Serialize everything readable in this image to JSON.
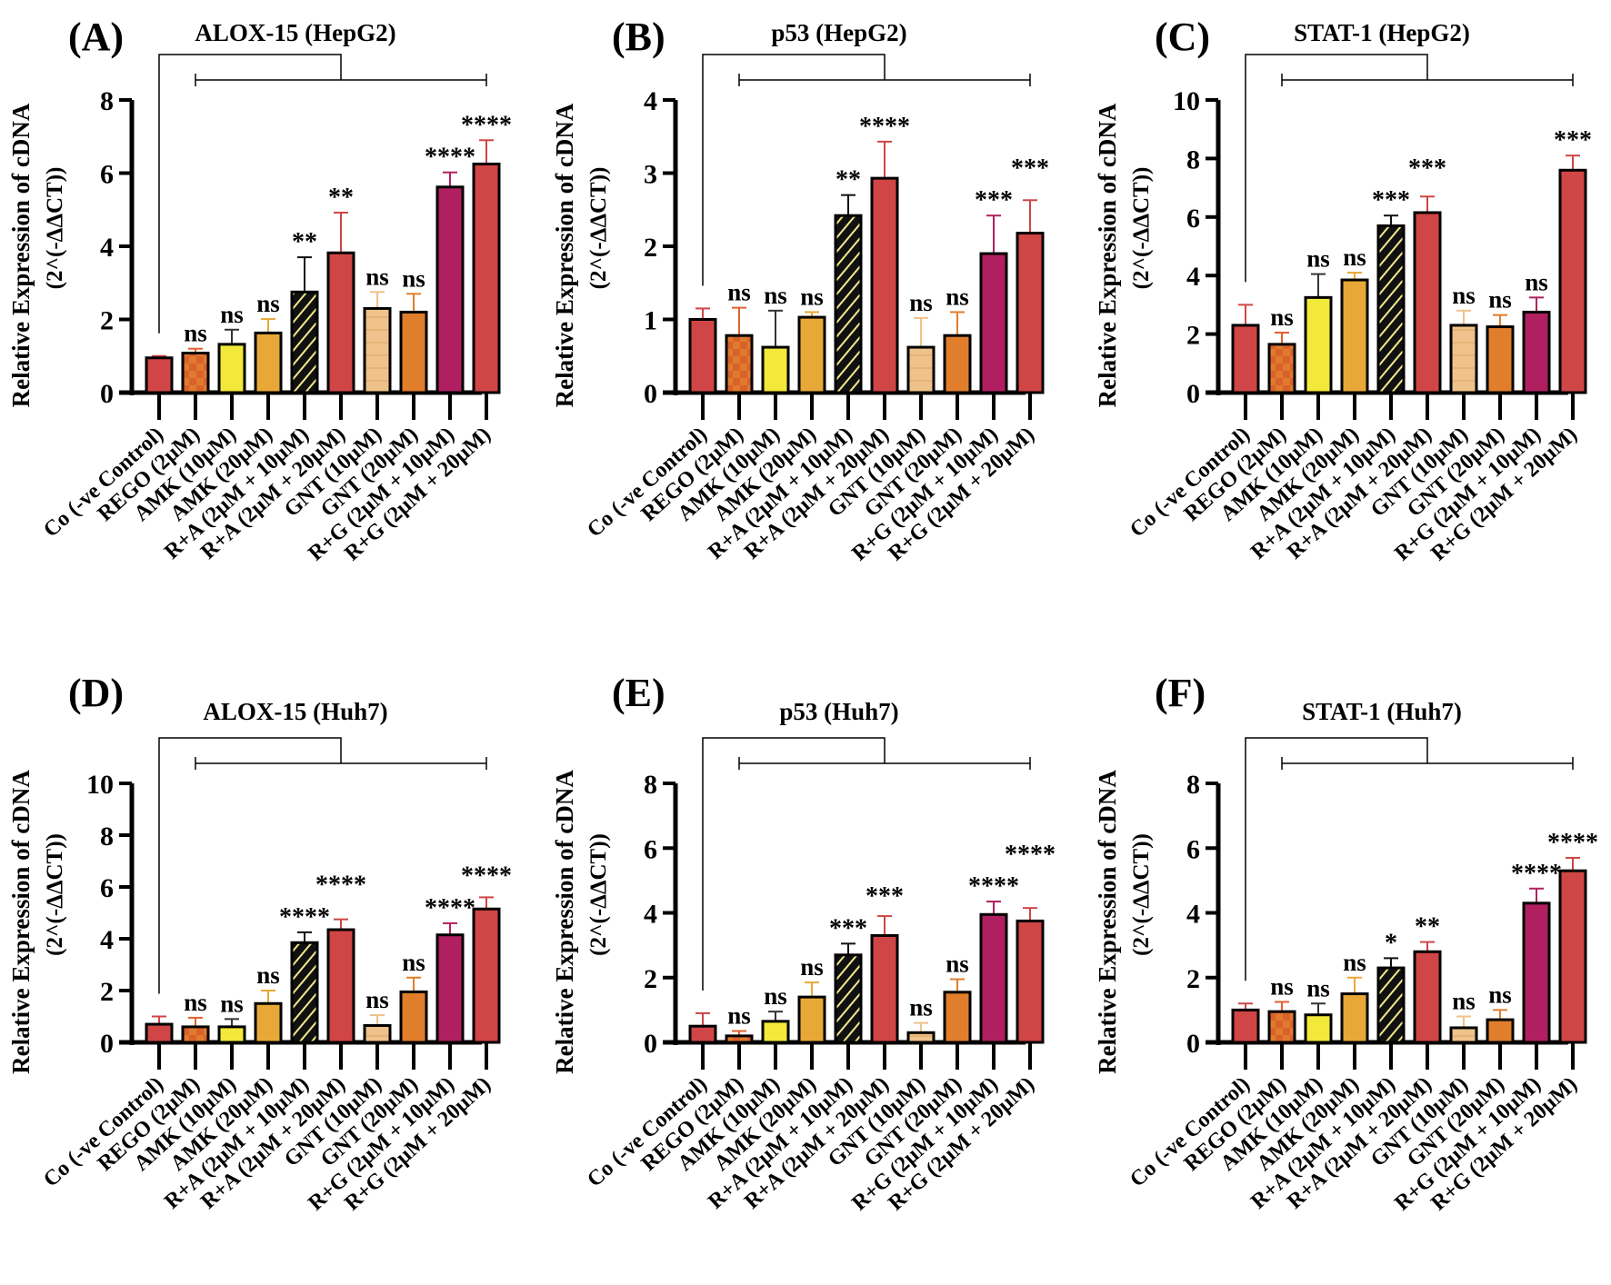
{
  "chart_data": [
    {
      "type": "bar",
      "panel_label": "(A)",
      "title": "ALOX-15 (HepG2)",
      "ylabel": "Relative Expression of cDNA",
      "ylabel2": "(2^(-ΔΔCT))",
      "ylim": [
        0,
        8
      ],
      "yticks": [
        0,
        2,
        4,
        6,
        8
      ],
      "categories": [
        "Co (-ve Control)",
        "REGO (2µM)",
        "AMK (10µM)",
        "AMK (20µM)",
        "R+A (2µM + 10µM)",
        "R+A (2µM + 20µM)",
        "GNT (10µM)",
        "GNT (20µM)",
        "R+G (2µM + 10µM)",
        "R+G (2µM + 20µM)"
      ],
      "values": [
        0.95,
        1.08,
        1.32,
        1.63,
        2.75,
        3.82,
        2.3,
        2.2,
        5.62,
        6.25
      ],
      "errors": [
        0.05,
        0.12,
        0.4,
        0.38,
        0.95,
        1.1,
        0.45,
        0.5,
        0.4,
        0.65
      ],
      "significance": [
        "",
        "ns",
        "ns",
        "ns",
        "**",
        "**",
        "ns",
        "ns",
        "****",
        "****"
      ]
    },
    {
      "type": "bar",
      "panel_label": "(B)",
      "title": "p53 (HepG2)",
      "ylabel": "Relative Expression of cDNA",
      "ylabel2": "(2^(-ΔΔCT))",
      "ylim": [
        0,
        4
      ],
      "yticks": [
        0,
        1,
        2,
        3,
        4
      ],
      "categories": [
        "Co (-ve Control)",
        "REGO (2µM)",
        "AMK (10µM)",
        "AMK (20µM)",
        "R+A (2µM + 10µM)",
        "R+A (2µM + 20µM)",
        "GNT (10µM)",
        "GNT (20µM)",
        "R+G (2µM + 10µM)",
        "R+G (2µM + 20µM)"
      ],
      "values": [
        1.0,
        0.78,
        0.62,
        1.03,
        2.42,
        2.93,
        0.62,
        0.78,
        1.9,
        2.18
      ],
      "errors": [
        0.15,
        0.38,
        0.5,
        0.07,
        0.28,
        0.5,
        0.4,
        0.32,
        0.52,
        0.45
      ],
      "significance": [
        "",
        "ns",
        "ns",
        "ns",
        "**",
        "****",
        "ns",
        "ns",
        "***",
        "***"
      ]
    },
    {
      "type": "bar",
      "panel_label": "(C)",
      "title": "STAT-1 (HepG2)",
      "ylabel": "Relative Expression of cDNA",
      "ylabel2": "(2^(-ΔΔCT))",
      "ylim": [
        0,
        10
      ],
      "yticks": [
        0,
        2,
        4,
        6,
        8,
        10
      ],
      "categories": [
        "Co (-ve Control)",
        "REGO (2µM)",
        "AMK (10µM)",
        "AMK (20µM)",
        "R+A (2µM + 10µM)",
        "R+A (2µM + 20µM)",
        "GNT (10µM)",
        "GNT (20µM)",
        "R+G (2µM + 10µM)",
        "R+G (2µM + 20µM)"
      ],
      "values": [
        2.3,
        1.65,
        3.25,
        3.85,
        5.7,
        6.15,
        2.3,
        2.25,
        2.75,
        7.6
      ],
      "errors": [
        0.7,
        0.4,
        0.8,
        0.25,
        0.35,
        0.55,
        0.5,
        0.4,
        0.5,
        0.5
      ],
      "significance": [
        "",
        "ns",
        "ns",
        "ns",
        "***",
        "***",
        "ns",
        "ns",
        "ns",
        "***"
      ]
    },
    {
      "type": "bar",
      "panel_label": "(D)",
      "title": "ALOX-15 (Huh7)",
      "ylabel": "Relative Expression of cDNA",
      "ylabel2": "(2^(-ΔΔCT))",
      "ylim": [
        0,
        10
      ],
      "yticks": [
        0,
        2,
        4,
        6,
        8,
        10
      ],
      "categories": [
        "Co (-ve Control)",
        "REGO (2µM)",
        "AMK (10µM)",
        "AMK (20µM)",
        "R+A (2µM + 10µM)",
        "R+A (2µM + 20µM)",
        "GNT (10µM)",
        "GNT (20µM)",
        "R+G (2µM + 10µM)",
        "R+G (2µM + 20µM)"
      ],
      "values": [
        0.7,
        0.6,
        0.6,
        1.5,
        3.85,
        4.35,
        0.65,
        1.95,
        4.15,
        5.15
      ],
      "errors": [
        0.3,
        0.35,
        0.3,
        0.5,
        0.4,
        0.4,
        0.4,
        0.55,
        0.45,
        0.45
      ],
      "significance": [
        "",
        "ns",
        "ns",
        "ns",
        "****",
        "****",
        "ns",
        "ns",
        "****",
        "****"
      ]
    },
    {
      "type": "bar",
      "panel_label": "(E)",
      "title": "p53 (Huh7)",
      "ylabel": "Relative Expression of cDNA",
      "ylabel2": "(2^(-ΔΔCT))",
      "ylim": [
        0,
        8
      ],
      "yticks": [
        0,
        2,
        4,
        6,
        8
      ],
      "categories": [
        "Co (-ve Control)",
        "REGO (2µM)",
        "AMK (10µM)",
        "AMK (20µM)",
        "R+A (2µM + 10µM)",
        "R+A (2µM + 20µM)",
        "GNT (10µM)",
        "GNT (20µM)",
        "R+G (2µM + 10µM)",
        "R+G (2µM + 20µM)"
      ],
      "values": [
        0.5,
        0.2,
        0.65,
        1.4,
        2.7,
        3.3,
        0.3,
        1.55,
        3.95,
        3.75
      ],
      "errors": [
        0.4,
        0.15,
        0.3,
        0.45,
        0.35,
        0.6,
        0.3,
        0.4,
        0.4,
        0.4
      ],
      "significance": [
        "",
        "ns",
        "ns",
        "ns",
        "***",
        "***",
        "ns",
        "ns",
        "****",
        "****"
      ]
    },
    {
      "type": "bar",
      "panel_label": "(F)",
      "title": "STAT-1 (Huh7)",
      "ylabel": "Relative Expression of cDNA",
      "ylabel2": "(2^(-ΔΔCT))",
      "ylim": [
        0,
        8
      ],
      "yticks": [
        0,
        2,
        4,
        6,
        8
      ],
      "categories": [
        "Co (-ve Control)",
        "REGO (2µM)",
        "AMK (10µM)",
        "AMK (20µM)",
        "R+A (2µM + 10µM)",
        "R+A (2µM + 20µM)",
        "GNT (10µM)",
        "GNT (20µM)",
        "R+G (2µM + 10µM)",
        "R+G (2µM + 20µM)"
      ],
      "values": [
        1.0,
        0.95,
        0.85,
        1.5,
        2.3,
        2.8,
        0.45,
        0.7,
        4.3,
        5.3
      ],
      "errors": [
        0.2,
        0.3,
        0.35,
        0.5,
        0.3,
        0.3,
        0.35,
        0.3,
        0.45,
        0.4
      ],
      "significance": [
        "",
        "ns",
        "ns",
        "ns",
        "*",
        "**",
        "ns",
        "ns",
        "****",
        "****"
      ]
    }
  ],
  "bar_colors": [
    "#d04545",
    "#e07a2e",
    "#f2e93a",
    "#e8a838",
    "#111111",
    "#d04545",
    "#eec28a",
    "#e07e2c",
    "#b02060",
    "#d04545"
  ],
  "bar_patterns": [
    "solid",
    "checker",
    "solid",
    "solid",
    "hatch",
    "solid",
    "grid",
    "solid",
    "solid",
    "solid"
  ],
  "error_colors": [
    "#d04545",
    "#e0602e",
    "#333333",
    "#e8a838",
    "#111111",
    "#d04545",
    "#eec28a",
    "#e07e2c",
    "#b02060",
    "#d04545"
  ]
}
